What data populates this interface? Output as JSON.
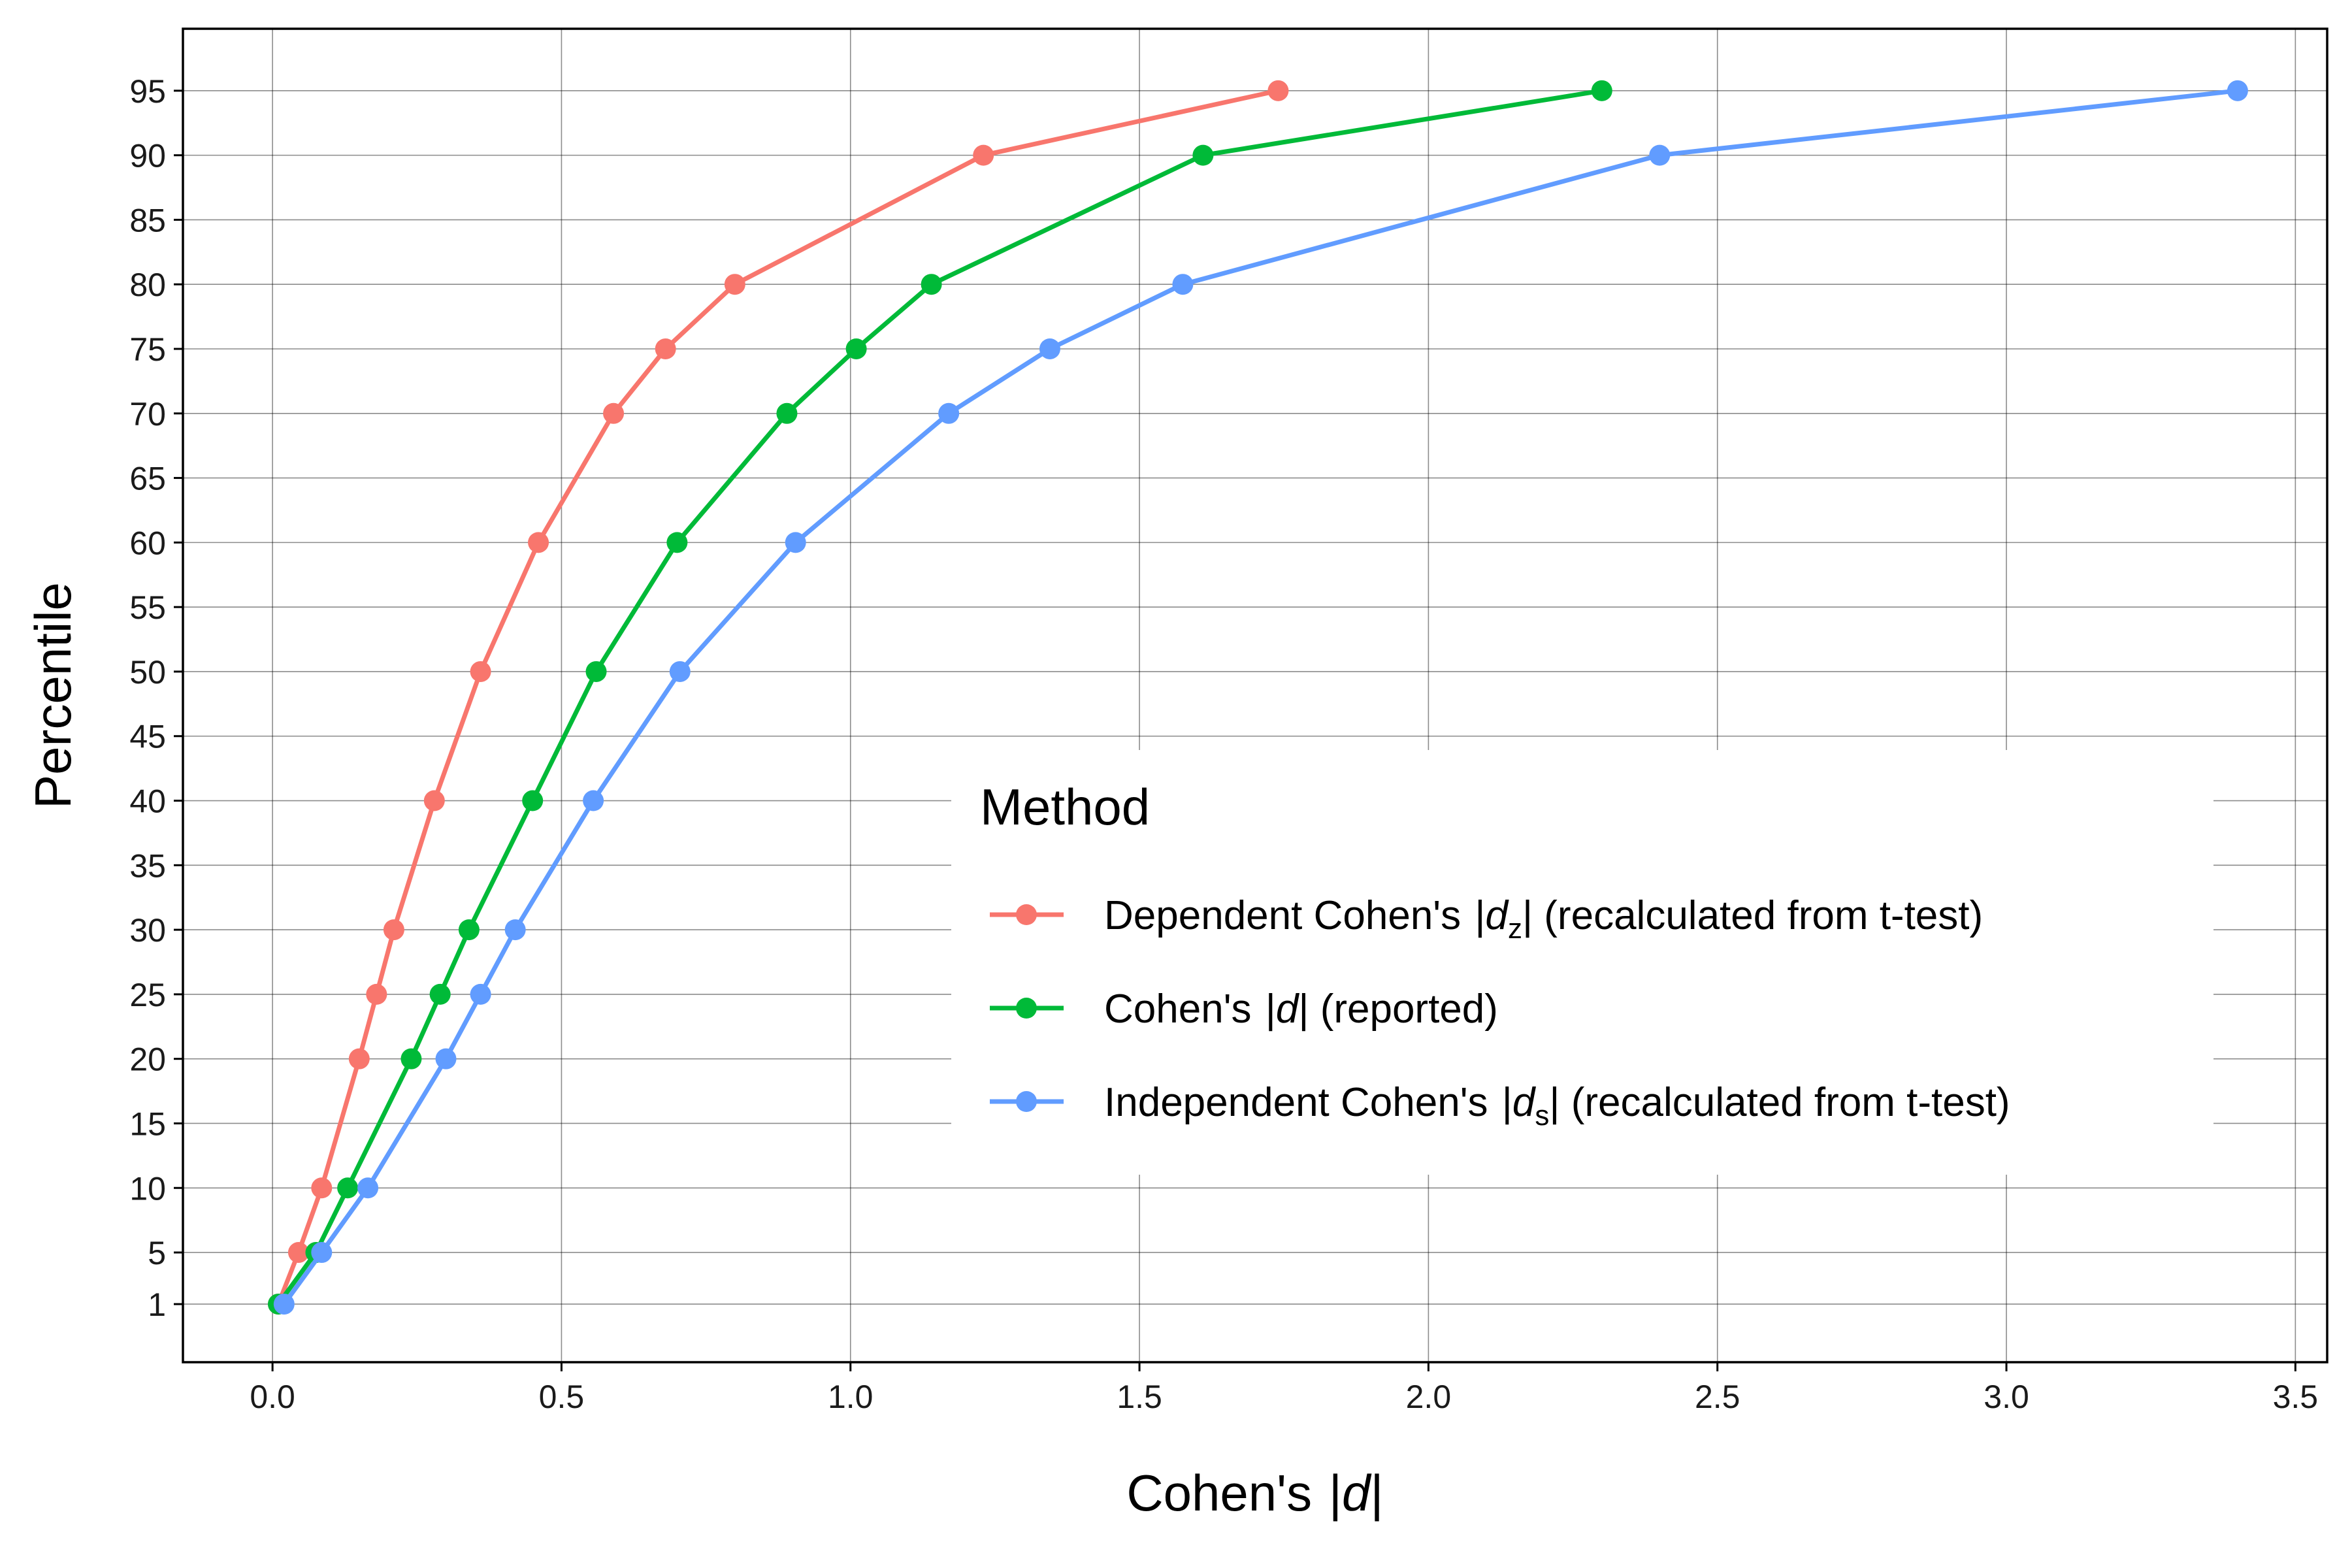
{
  "chart_data": {
    "type": "line",
    "xlabel": "Cohen's |d|",
    "xlabel_parts": {
      "before": "Cohen's ",
      "var": "d"
    },
    "ylabel": "Percentile",
    "xlim": [
      -0.155,
      3.555
    ],
    "ylim": [
      -3.5,
      99.8
    ],
    "x_ticks": [
      0.0,
      0.5,
      1.0,
      1.5,
      2.0,
      2.5,
      3.0,
      3.5
    ],
    "x_tick_labels": [
      "0.0",
      "0.5",
      "1.0",
      "1.5",
      "2.0",
      "2.5",
      "3.0",
      "3.5"
    ],
    "y_ticks": [
      1,
      5,
      10,
      15,
      20,
      25,
      30,
      35,
      40,
      45,
      50,
      55,
      60,
      65,
      70,
      75,
      80,
      85,
      90,
      95
    ],
    "y_tick_labels": [
      "1",
      "5",
      "10",
      "15",
      "20",
      "25",
      "30",
      "35",
      "40",
      "45",
      "50",
      "55",
      "60",
      "65",
      "70",
      "75",
      "80",
      "85",
      "90",
      "95"
    ],
    "grid": true,
    "legend": {
      "title": "Method",
      "placement": "inside-right"
    },
    "series": [
      {
        "name": "Dependent Cohen's |dz| (recalculated from t-test)",
        "legend_parts": {
          "before": "Dependent Cohen's ",
          "var": "d",
          "sub": "z",
          "after": " (recalculated from t-test)"
        },
        "color": "#F8766D",
        "points": [
          [
            0.01,
            1
          ],
          [
            0.045,
            5
          ],
          [
            0.085,
            10
          ],
          [
            0.15,
            20
          ],
          [
            0.18,
            25
          ],
          [
            0.21,
            30
          ],
          [
            0.28,
            40
          ],
          [
            0.36,
            50
          ],
          [
            0.46,
            60
          ],
          [
            0.59,
            70
          ],
          [
            0.68,
            75
          ],
          [
            0.8,
            80
          ],
          [
            1.23,
            90
          ],
          [
            1.74,
            95
          ]
        ]
      },
      {
        "name": "Cohen's |d| (reported)",
        "legend_parts": {
          "before": "Cohen's ",
          "var": "d",
          "sub": "",
          "after": " (reported)"
        },
        "color": "#00BA38",
        "points": [
          [
            0.01,
            1
          ],
          [
            0.075,
            5
          ],
          [
            0.13,
            10
          ],
          [
            0.24,
            20
          ],
          [
            0.29,
            25
          ],
          [
            0.34,
            30
          ],
          [
            0.45,
            40
          ],
          [
            0.56,
            50
          ],
          [
            0.7,
            60
          ],
          [
            0.89,
            70
          ],
          [
            1.01,
            75
          ],
          [
            1.14,
            80
          ],
          [
            1.61,
            90
          ],
          [
            2.3,
            95
          ]
        ]
      },
      {
        "name": "Independent Cohen's |ds| (recalculated from t-test)",
        "legend_parts": {
          "before": "Independent Cohen's ",
          "var": "d",
          "sub": "s",
          "after": " (recalculated from t-test)"
        },
        "color": "#619CFF",
        "points": [
          [
            0.02,
            1
          ],
          [
            0.085,
            5
          ],
          [
            0.165,
            10
          ],
          [
            0.3,
            20
          ],
          [
            0.36,
            25
          ],
          [
            0.42,
            30
          ],
          [
            0.555,
            40
          ],
          [
            0.705,
            50
          ],
          [
            0.905,
            60
          ],
          [
            1.17,
            70
          ],
          [
            1.345,
            75
          ],
          [
            1.575,
            80
          ],
          [
            2.4,
            90
          ],
          [
            3.4,
            95
          ]
        ]
      }
    ]
  }
}
